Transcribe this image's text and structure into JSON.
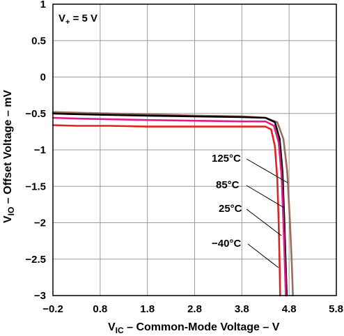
{
  "chart_data": {
    "type": "line",
    "title": "",
    "xlabel": {
      "main": "V",
      "sub": "IC",
      "rest": " – Common-Mode Voltage – V"
    },
    "ylabel": {
      "main": "V",
      "sub": "IO",
      "rest": " – Offset Voltage – mV"
    },
    "xlim": [
      -0.2,
      5.8
    ],
    "ylim": [
      -3,
      1
    ],
    "xticks": [
      -0.2,
      0.8,
      1.8,
      2.8,
      3.8,
      4.8,
      5.8
    ],
    "xtick_labels": [
      "−0.2",
      "0.8",
      "1.8",
      "2.8",
      "3.8",
      "4.8",
      "5.8"
    ],
    "yticks": [
      1,
      0.5,
      0,
      -0.5,
      -1,
      -1.5,
      -2,
      -2.5,
      -3
    ],
    "ytick_labels": [
      "1",
      "0.5",
      "0",
      "−0.5",
      "−1",
      "−1.5",
      "−2",
      "−2.5",
      "−3"
    ],
    "grid": true,
    "note": {
      "main": "V",
      "sub": "+",
      "rest": " = 5 V"
    },
    "series": [
      {
        "name": "125°C",
        "color": "#9B6B5E",
        "x": [
          -0.2,
          0.3,
          1.0,
          1.8,
          2.8,
          3.8,
          4.3,
          4.55,
          4.68,
          4.76,
          4.82,
          4.86,
          4.88
        ],
        "y": [
          -0.48,
          -0.49,
          -0.5,
          -0.51,
          -0.53,
          -0.54,
          -0.56,
          -0.62,
          -0.85,
          -1.3,
          -2.0,
          -2.6,
          -3.0
        ]
      },
      {
        "name": "85°C",
        "color": "#000000",
        "x": [
          -0.2,
          0.3,
          1.0,
          1.8,
          2.8,
          3.8,
          4.3,
          4.5,
          4.6,
          4.66,
          4.7,
          4.73,
          4.75
        ],
        "y": [
          -0.5,
          -0.51,
          -0.52,
          -0.53,
          -0.54,
          -0.55,
          -0.56,
          -0.62,
          -0.85,
          -1.3,
          -2.0,
          -2.6,
          -3.0
        ]
      },
      {
        "name": "25°C",
        "color": "#E6198C",
        "x": [
          -0.2,
          0.3,
          1.0,
          1.8,
          2.8,
          3.8,
          4.3,
          4.48,
          4.58,
          4.64,
          4.68,
          4.71,
          4.73
        ],
        "y": [
          -0.56,
          -0.57,
          -0.58,
          -0.59,
          -0.6,
          -0.61,
          -0.61,
          -0.67,
          -0.9,
          -1.35,
          -2.0,
          -2.6,
          -3.0
        ]
      },
      {
        "name": "−40°C",
        "color": "#DE2323",
        "x": [
          -0.2,
          0.3,
          1.0,
          1.8,
          2.8,
          3.8,
          4.3,
          4.42,
          4.5,
          4.55,
          4.58,
          4.6,
          4.61
        ],
        "y": [
          -0.66,
          -0.67,
          -0.67,
          -0.68,
          -0.68,
          -0.68,
          -0.68,
          -0.72,
          -0.95,
          -1.4,
          -2.0,
          -2.6,
          -3.0
        ]
      }
    ]
  }
}
